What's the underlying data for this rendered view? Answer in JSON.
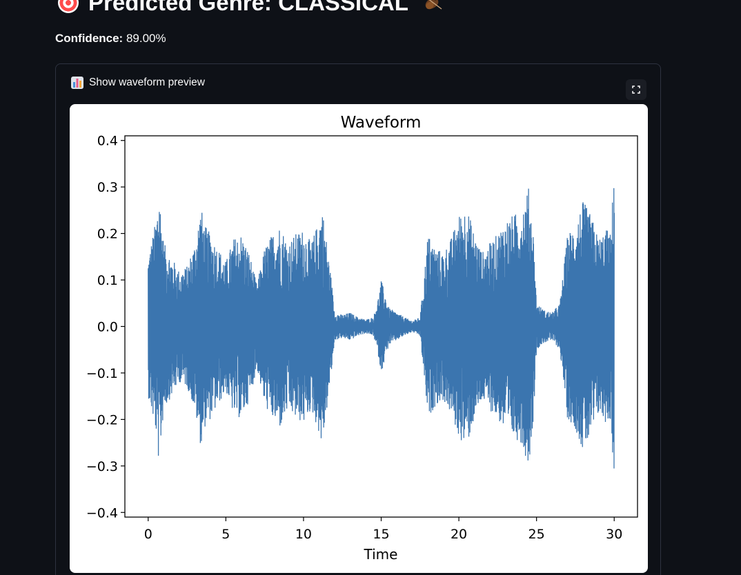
{
  "header": {
    "title": "Predicted Genre: CLASSICAL",
    "leading_icon": "target-icon",
    "trailing_icon": "violin-icon"
  },
  "confidence": {
    "label": "Confidence:",
    "value": "89.00%"
  },
  "expander": {
    "label": "Show waveform preview",
    "icon": "bar-chart-icon",
    "fullscreen_icon": "fullscreen-icon"
  },
  "colors": {
    "background": "#0e1117",
    "waveform": "#3b75af",
    "border": "#2e3340"
  },
  "chart_data": {
    "type": "line",
    "title": "Waveform",
    "xlabel": "Time",
    "ylabel": "",
    "xlim": [
      -1.5,
      31.5
    ],
    "ylim": [
      -0.41,
      0.41
    ],
    "xticks": [
      0,
      5,
      10,
      15,
      20,
      25,
      30
    ],
    "xtick_labels": [
      "0",
      "5",
      "10",
      "15",
      "20",
      "25",
      "30"
    ],
    "yticks": [
      0.4,
      0.3,
      0.2,
      0.1,
      0.0,
      -0.1,
      -0.2,
      -0.3,
      -0.4
    ],
    "ytick_labels": [
      "0.4",
      "0.3",
      "0.2",
      "0.1",
      "0.0",
      "−0.1",
      "−0.2",
      "−0.3",
      "−0.4"
    ],
    "grid": false,
    "series": [
      {
        "envelope_time": [
          0,
          0.5,
          0.7,
          1,
          1.5,
          2,
          2.5,
          3,
          3.4,
          3.6,
          4,
          4.5,
          5,
          5.5,
          6,
          6.5,
          7,
          7.5,
          8,
          8.5,
          9,
          9.5,
          10,
          10.5,
          11,
          11.2,
          11.5,
          11.8,
          12,
          12.5,
          13,
          13.5,
          14,
          14.5,
          14.8,
          15,
          15.5,
          16,
          16.5,
          17,
          17.5,
          17.8,
          18,
          18.5,
          19,
          19.5,
          20,
          20.5,
          21,
          21.5,
          22,
          22.5,
          23,
          23.5,
          24,
          24.5,
          24.8,
          25,
          25.5,
          26,
          26.5,
          27,
          27.5,
          28,
          28.5,
          29,
          29.5,
          29.8,
          30
        ],
        "envelope_amplitude": [
          0.15,
          0.23,
          0.3,
          0.18,
          0.15,
          0.12,
          0.13,
          0.18,
          0.26,
          0.22,
          0.2,
          0.17,
          0.14,
          0.19,
          0.2,
          0.16,
          0.09,
          0.17,
          0.2,
          0.22,
          0.18,
          0.2,
          0.21,
          0.18,
          0.23,
          0.26,
          0.18,
          0.1,
          0.03,
          0.025,
          0.03,
          0.02,
          0.015,
          0.02,
          0.06,
          0.1,
          0.04,
          0.03,
          0.02,
          0.012,
          0.02,
          0.12,
          0.2,
          0.17,
          0.16,
          0.19,
          0.24,
          0.26,
          0.2,
          0.16,
          0.18,
          0.2,
          0.23,
          0.24,
          0.25,
          0.3,
          0.2,
          0.05,
          0.035,
          0.03,
          0.05,
          0.2,
          0.22,
          0.27,
          0.24,
          0.19,
          0.21,
          0.2,
          0.37
        ]
      }
    ]
  }
}
